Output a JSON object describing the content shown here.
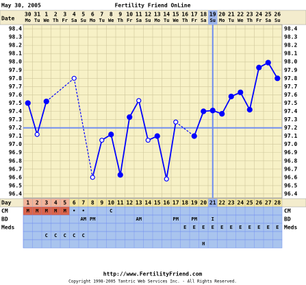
{
  "header": {
    "date": "May 30, 2005",
    "title": "Fertility Friend OnLine"
  },
  "footer": {
    "url": "http://www.FertilityFriend.com",
    "copyright": "Copyright 1998-2005 Tantric Web Services Inc. - All Rights Reserved."
  },
  "chart_data": {
    "type": "line",
    "date_label": "Date",
    "day_label": "Day",
    "dates": [
      "30",
      "31",
      "1",
      "2",
      "3",
      "4",
      "5",
      "6",
      "7",
      "8",
      "9",
      "10",
      "11",
      "12",
      "13",
      "14",
      "15",
      "16",
      "17",
      "18",
      "19",
      "20",
      "21",
      "22",
      "23",
      "24",
      "25",
      "26"
    ],
    "weekdays": [
      "Mo",
      "Tu",
      "We",
      "Th",
      "Fr",
      "Sa",
      "Su",
      "Mo",
      "Tu",
      "We",
      "Th",
      "Fr",
      "Sa",
      "Su",
      "Mo",
      "Tu",
      "We",
      "Th",
      "Fr",
      "Sa",
      "Su",
      "Mo",
      "Tu",
      "We",
      "Th",
      "Fr",
      "Sa",
      "Su"
    ],
    "x": [
      1,
      2,
      3,
      4,
      5,
      6,
      7,
      8,
      9,
      10,
      11,
      12,
      13,
      14,
      15,
      16,
      17,
      18,
      19,
      20,
      21,
      22,
      23,
      24,
      25,
      26,
      27,
      28
    ],
    "series": [
      {
        "color": "#0000ff",
        "values": [
          97.5,
          97.12,
          97.52,
          null,
          null,
          97.8,
          null,
          96.6,
          97.05,
          97.12,
          96.63,
          97.33,
          97.53,
          97.05,
          97.1,
          96.58,
          97.27,
          null,
          97.1,
          97.4,
          97.41,
          97.37,
          97.58,
          97.63,
          97.42,
          97.93,
          97.99,
          97.8
        ],
        "open": [
          false,
          true,
          false,
          false,
          false,
          true,
          false,
          true,
          true,
          false,
          false,
          false,
          true,
          true,
          false,
          true,
          true,
          false,
          false,
          false,
          false,
          false,
          false,
          false,
          false,
          false,
          false,
          false
        ]
      }
    ],
    "ylim": [
      96.35,
      98.45
    ],
    "yticks": [
      {
        "value": 98.4,
        "label": "98.4"
      },
      {
        "value": 98.3,
        "label": "98.3"
      },
      {
        "value": 98.2,
        "label": "98.2"
      },
      {
        "value": 98.1,
        "label": "98.1"
      },
      {
        "value": 98,
        "label": "98.0"
      },
      {
        "value": 97.9,
        "label": "97.9"
      },
      {
        "value": 97.8,
        "label": "97.8"
      },
      {
        "value": 97.7,
        "label": "97.7"
      },
      {
        "value": 97.6,
        "label": "97.6"
      },
      {
        "value": 97.5,
        "label": "97.5"
      },
      {
        "value": 97.4,
        "label": "97.4"
      },
      {
        "value": 97.3,
        "label": "97.3"
      },
      {
        "value": 97.2,
        "label": "97.2"
      },
      {
        "value": 97.1,
        "label": "97.1"
      },
      {
        "value": 97,
        "label": "97.0"
      },
      {
        "value": 96.9,
        "label": "96.9"
      },
      {
        "value": 96.8,
        "label": "96.8"
      },
      {
        "value": 96.7,
        "label": "96.7"
      },
      {
        "value": 96.6,
        "label": "96.6"
      },
      {
        "value": 96.5,
        "label": "96.5"
      },
      {
        "value": 96.4,
        "label": "96.4"
      }
    ],
    "coverline": 97.2,
    "ovulation_day": 21,
    "grid": true,
    "rows": [
      {
        "label": "CM",
        "cells": [
          "M",
          "M",
          "M",
          "M",
          "M",
          "•",
          "•",
          null,
          null,
          "C",
          null,
          null,
          null,
          null,
          null,
          null,
          null,
          null,
          null,
          null,
          null,
          null,
          null,
          null,
          null,
          null,
          null,
          null
        ]
      },
      {
        "label": "BD",
        "cells": [
          null,
          null,
          null,
          null,
          null,
          null,
          "AM",
          "PM",
          null,
          null,
          null,
          null,
          "AM",
          null,
          null,
          null,
          "PM",
          null,
          "PM",
          null,
          "I",
          null,
          null,
          null,
          null,
          null,
          null,
          null
        ]
      },
      {
        "label": "Meds",
        "cells": [
          null,
          null,
          null,
          null,
          null,
          null,
          null,
          null,
          null,
          null,
          null,
          null,
          null,
          null,
          null,
          null,
          null,
          "E",
          "E",
          "E",
          "E",
          "E",
          "E",
          "E",
          "E",
          "E",
          "E",
          "E"
        ]
      },
      {
        "label": null,
        "cells": [
          null,
          null,
          "C",
          "C",
          "C",
          "C",
          "C",
          null,
          null,
          null,
          null,
          null,
          null,
          null,
          null,
          null,
          null,
          null,
          null,
          null,
          null,
          null,
          null,
          null,
          null,
          null,
          null,
          null
        ]
      },
      {
        "label": null,
        "cells": [
          null,
          null,
          null,
          null,
          null,
          null,
          null,
          null,
          null,
          null,
          null,
          null,
          null,
          null,
          null,
          null,
          null,
          null,
          null,
          "H",
          null,
          null,
          null,
          null,
          null,
          null,
          null,
          null
        ]
      }
    ]
  }
}
